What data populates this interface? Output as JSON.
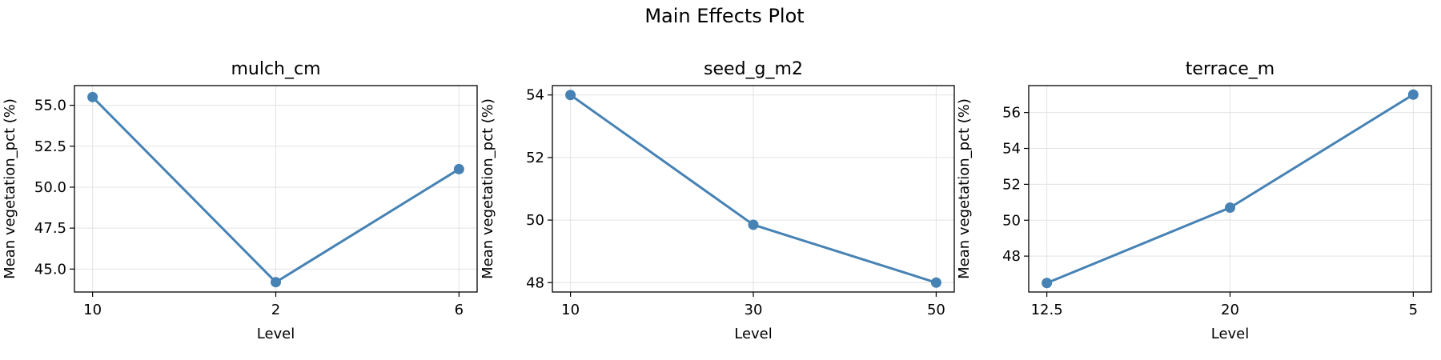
{
  "figure_title": "Main Effects Plot",
  "chart_data": [
    {
      "type": "line",
      "title": "mulch_cm",
      "xlabel": "Level",
      "ylabel": "Mean vegetation_pct (%)",
      "categories": [
        "10",
        "2",
        "6"
      ],
      "values": [
        55.5,
        44.2,
        51.1
      ],
      "ylim": [
        43.6,
        56.2
      ],
      "yticks": [
        45.0,
        47.5,
        50.0,
        52.5,
        55.0
      ],
      "ytick_labels": [
        "45.0",
        "47.5",
        "50.0",
        "52.5",
        "55.0"
      ],
      "grid": true,
      "color": "#4682b4"
    },
    {
      "type": "line",
      "title": "seed_g_m2",
      "xlabel": "Level",
      "ylabel": "Mean vegetation_pct (%)",
      "categories": [
        "10",
        "30",
        "50"
      ],
      "values": [
        54.0,
        49.85,
        48.0
      ],
      "ylim": [
        47.7,
        54.3
      ],
      "yticks": [
        48,
        50,
        52,
        54
      ],
      "ytick_labels": [
        "48",
        "50",
        "52",
        "54"
      ],
      "grid": true,
      "color": "#4682b4"
    },
    {
      "type": "line",
      "title": "terrace_m",
      "xlabel": "Level",
      "ylabel": "Mean vegetation_pct (%)",
      "categories": [
        "12.5",
        "20",
        "5"
      ],
      "values": [
        46.5,
        50.7,
        57.0
      ],
      "ylim": [
        46.0,
        57.5
      ],
      "yticks": [
        48,
        50,
        52,
        54,
        56
      ],
      "ytick_labels": [
        "48",
        "50",
        "52",
        "54",
        "56"
      ],
      "grid": true,
      "color": "#4682b4"
    }
  ]
}
